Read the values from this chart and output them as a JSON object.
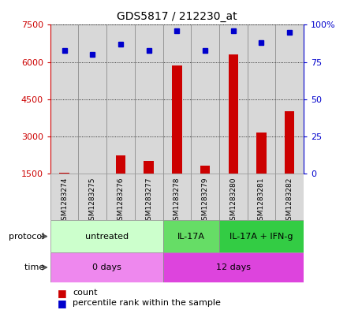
{
  "title": "GDS5817 / 212230_at",
  "samples": [
    "GSM1283274",
    "GSM1283275",
    "GSM1283276",
    "GSM1283277",
    "GSM1283278",
    "GSM1283279",
    "GSM1283280",
    "GSM1283281",
    "GSM1283282"
  ],
  "counts": [
    1530,
    1510,
    2220,
    2000,
    5850,
    1820,
    6300,
    3150,
    4000
  ],
  "percentile_ranks": [
    83,
    80,
    87,
    83,
    96,
    83,
    96,
    88,
    95
  ],
  "ymin": 1500,
  "ymax": 7500,
  "yticks": [
    1500,
    3000,
    4500,
    6000,
    7500
  ],
  "ytick_labels": [
    "1500",
    "3000",
    "4500",
    "6000",
    "7500"
  ],
  "right_yticks": [
    0,
    25,
    50,
    75,
    100
  ],
  "right_ytick_labels": [
    "0",
    "25",
    "50",
    "75",
    "100%"
  ],
  "bar_color": "#cc0000",
  "dot_color": "#0000cc",
  "protocol_groups": [
    {
      "label": "untreated",
      "start": 0,
      "end": 4,
      "color": "#ccffcc"
    },
    {
      "label": "IL-17A",
      "start": 4,
      "end": 6,
      "color": "#66dd66"
    },
    {
      "label": "IL-17A + IFN-g",
      "start": 6,
      "end": 9,
      "color": "#33cc44"
    }
  ],
  "time_groups": [
    {
      "label": "0 days",
      "start": 0,
      "end": 4,
      "color": "#ee88ee"
    },
    {
      "label": "12 days",
      "start": 4,
      "end": 9,
      "color": "#dd44dd"
    }
  ],
  "protocol_label": "protocol",
  "time_label": "time",
  "legend_count": "count",
  "legend_percentile": "percentile rank within the sample",
  "axis_color_left": "#cc0000",
  "axis_color_right": "#0000cc",
  "bg_color": "#ffffff",
  "sample_box_color": "#d8d8d8",
  "sample_box_border": "#888888",
  "grid_color": "#000000"
}
